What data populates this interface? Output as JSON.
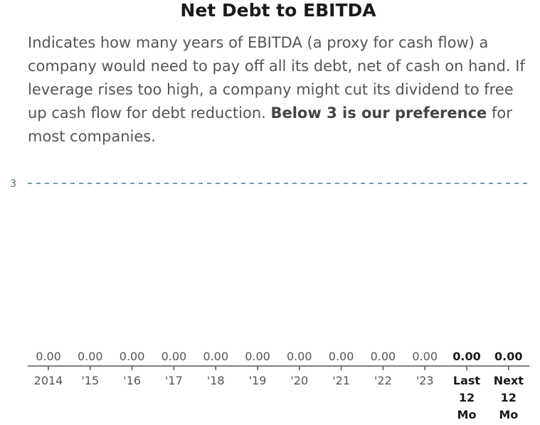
{
  "title": "Net Debt to EBITDA",
  "description": {
    "text_before": "Indicates how many years of EBITDA (a proxy for cash flow) a company would need to pay off all its debt, net of cash on hand. If leverage rises too high, a company might cut its dividend to free up cash flow for debt reduction. ",
    "bold": "Below 3 is our preference",
    "text_after": " for most companies."
  },
  "chart_data": {
    "type": "bar",
    "title": "Net Debt to EBITDA",
    "categories": [
      "2014",
      "'15",
      "'16",
      "'17",
      "'18",
      "'19",
      "'20",
      "'21",
      "'22",
      "'23",
      "Last 12 Mo",
      "Next 12 Mo"
    ],
    "values": [
      0,
      0,
      0,
      0,
      0,
      0,
      0,
      0,
      0,
      0,
      0,
      0
    ],
    "value_labels": [
      "0.00",
      "0.00",
      "0.00",
      "0.00",
      "0.00",
      "0.00",
      "0.00",
      "0.00",
      "0.00",
      "0.00",
      "0.00",
      "0.00"
    ],
    "emphasized_categories": [
      "Last 12 Mo",
      "Next 12 Mo"
    ],
    "reference_line": {
      "value": 3,
      "label": "3",
      "style": "dashed",
      "color": "#4a7a90"
    },
    "ylim": [
      0,
      3
    ],
    "grid": false,
    "legend": "none",
    "colors": {
      "axis": "#555555",
      "text": "#555555",
      "emphasis": "#1a1a1a"
    }
  }
}
